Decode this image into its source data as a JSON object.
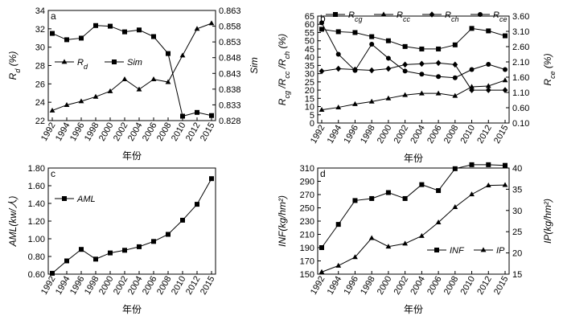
{
  "chart_data": [
    {
      "panel": "a",
      "type": "line",
      "x": [
        "1992",
        "1994",
        "1996",
        "1998",
        "2000",
        "2002",
        "2004",
        "2006",
        "2008",
        "2010",
        "2012",
        "2015"
      ],
      "xlabel": "年份",
      "ylabel": "R_d (%)",
      "ylabel_right": "Sim",
      "ylim": [
        22,
        34
      ],
      "yticks": [
        22,
        24,
        26,
        28,
        30,
        32,
        34
      ],
      "ylim_right": [
        0.828,
        0.863
      ],
      "yticks_right": [
        0.828,
        0.833,
        0.838,
        0.843,
        0.848,
        0.853,
        0.858,
        0.863
      ],
      "legend_position": "left",
      "series": [
        {
          "name": "R_d",
          "legend": "R_d",
          "axis": "left",
          "marker": "triangle",
          "values": [
            23.1,
            23.7,
            24.1,
            24.6,
            25.2,
            26.5,
            25.4,
            26.5,
            26.2,
            29.1,
            32.0,
            32.6
          ]
        },
        {
          "name": "Sim",
          "legend": "Sim",
          "axis": "right",
          "marker": "square",
          "values": [
            0.8557,
            0.8537,
            0.8542,
            0.8582,
            0.858,
            0.8562,
            0.8568,
            0.8547,
            0.8493,
            0.8294,
            0.8306,
            0.8296
          ]
        }
      ]
    },
    {
      "panel": "b",
      "type": "line",
      "x": [
        "1992",
        "1994",
        "1996",
        "1998",
        "2000",
        "2002",
        "2004",
        "2006",
        "2008",
        "2010",
        "2012",
        "2015"
      ],
      "xlabel": "年份",
      "ylabel": "R_cg /R_cc /R_ch (%)",
      "ylabel_right": "R_ce (%)",
      "ylim": [
        0,
        65
      ],
      "yticks": [
        0,
        5,
        10,
        15,
        20,
        25,
        30,
        35,
        40,
        45,
        50,
        55,
        60,
        65
      ],
      "ylim_right": [
        0.1,
        3.6
      ],
      "yticks_right": [
        "0.10",
        "0.60",
        "1.10",
        "1.60",
        "2.10",
        "2.60",
        "3.10",
        "3.60"
      ],
      "legend_position": "top",
      "series": [
        {
          "name": "R_cg",
          "legend": "R_cg",
          "axis": "left",
          "marker": "square",
          "values": [
            57,
            55.5,
            55,
            52.5,
            50,
            46.5,
            45,
            45,
            47.5,
            57.5,
            56,
            53
          ]
        },
        {
          "name": "R_cc",
          "legend": "R_cc",
          "axis": "left",
          "marker": "triangle",
          "values": [
            8,
            9.5,
            11.5,
            13,
            15,
            17,
            18,
            18,
            16.5,
            22,
            22.5,
            26
          ]
        },
        {
          "name": "R_ch",
          "legend": "R_ch",
          "axis": "left",
          "marker": "diamond",
          "values": [
            31.5,
            33,
            32.5,
            32,
            33,
            35.5,
            36,
            36.5,
            35.5,
            20,
            20,
            20
          ]
        },
        {
          "name": "R_ce",
          "legend": "R_ce",
          "axis": "right",
          "marker": "circle",
          "values": [
            3.38,
            2.35,
            1.82,
            2.68,
            2.22,
            1.8,
            1.7,
            1.62,
            1.58,
            1.85,
            2.02,
            1.85
          ]
        }
      ]
    },
    {
      "panel": "c",
      "type": "line",
      "x": [
        "1992",
        "1994",
        "1996",
        "1998",
        "2000",
        "2002",
        "2004",
        "2006",
        "2008",
        "2010",
        "2012",
        "2015"
      ],
      "xlabel": "年份",
      "ylabel": "AML(kw/人)",
      "ylim": [
        0.6,
        1.8
      ],
      "yticks": [
        "0.60",
        "0.80",
        "1.00",
        "1.20",
        "1.40",
        "1.60",
        "1.80"
      ],
      "legend_position": "top-left",
      "series": [
        {
          "name": "AML",
          "legend": "AML",
          "axis": "left",
          "marker": "square",
          "values": [
            0.61,
            0.75,
            0.88,
            0.77,
            0.84,
            0.87,
            0.91,
            0.97,
            1.05,
            1.21,
            1.39,
            1.68
          ]
        }
      ]
    },
    {
      "panel": "d",
      "type": "line",
      "x": [
        "1992",
        "1994",
        "1996",
        "1998",
        "2000",
        "2002",
        "2004",
        "2006",
        "2008",
        "2010",
        "2012",
        "2015"
      ],
      "xlabel": "年份",
      "ylabel": "INF(kg/hm²)",
      "ylabel_right": "IP(kg/hm²)",
      "ylim": [
        150,
        310
      ],
      "yticks": [
        150,
        170,
        190,
        210,
        230,
        250,
        270,
        290,
        310
      ],
      "ylim_right": [
        15,
        40
      ],
      "yticks_right": [
        15,
        20,
        25,
        30,
        35,
        40
      ],
      "legend_position": "bottom-right",
      "series": [
        {
          "name": "INF",
          "legend": "INF",
          "axis": "left",
          "marker": "square",
          "values": [
            190,
            225,
            261,
            264,
            273,
            264,
            285,
            276,
            309,
            315,
            315,
            314
          ]
        },
        {
          "name": "IP",
          "legend": "IP",
          "axis": "right",
          "marker": "triangle",
          "values": [
            15.5,
            17,
            19,
            23.5,
            21.5,
            22.2,
            24,
            27.2,
            30.8,
            33.8,
            35.9,
            36
          ]
        }
      ]
    }
  ]
}
